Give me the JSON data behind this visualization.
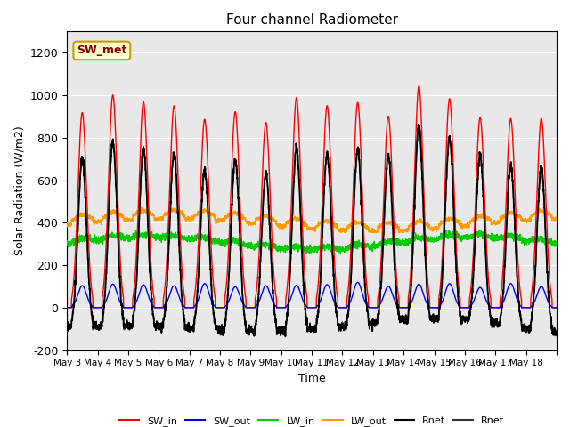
{
  "title": "Four channel Radiometer",
  "xlabel": "Time",
  "ylabel": "Solar Radiation (W/m2)",
  "ylim": [
    -200,
    1300
  ],
  "yticks": [
    -200,
    0,
    200,
    400,
    600,
    800,
    1000,
    1200
  ],
  "x_labels": [
    "May 3",
    "May 4",
    "May 5",
    "May 6",
    "May 7",
    "May 8",
    "May 9",
    "May 10",
    "May 11",
    "May 12",
    "May 13",
    "May 14",
    "May 15",
    "May 16",
    "May 17",
    "May 18"
  ],
  "n_days": 16,
  "annotation_text": "SW_met",
  "annotation_bg": "#ffffcc",
  "annotation_edge": "#cc9900",
  "annotation_text_color": "#880000",
  "bg_color": "#e8e8e8",
  "legend_entries": [
    {
      "label": "SW_in",
      "color": "#ff0000"
    },
    {
      "label": "SW_out",
      "color": "#0000ff"
    },
    {
      "label": "LW_in",
      "color": "#00cc00"
    },
    {
      "label": "LW_out",
      "color": "#ff9900"
    },
    {
      "label": "Rnet",
      "color": "#000000"
    },
    {
      "label": "Rnet",
      "color": "#333333"
    }
  ]
}
